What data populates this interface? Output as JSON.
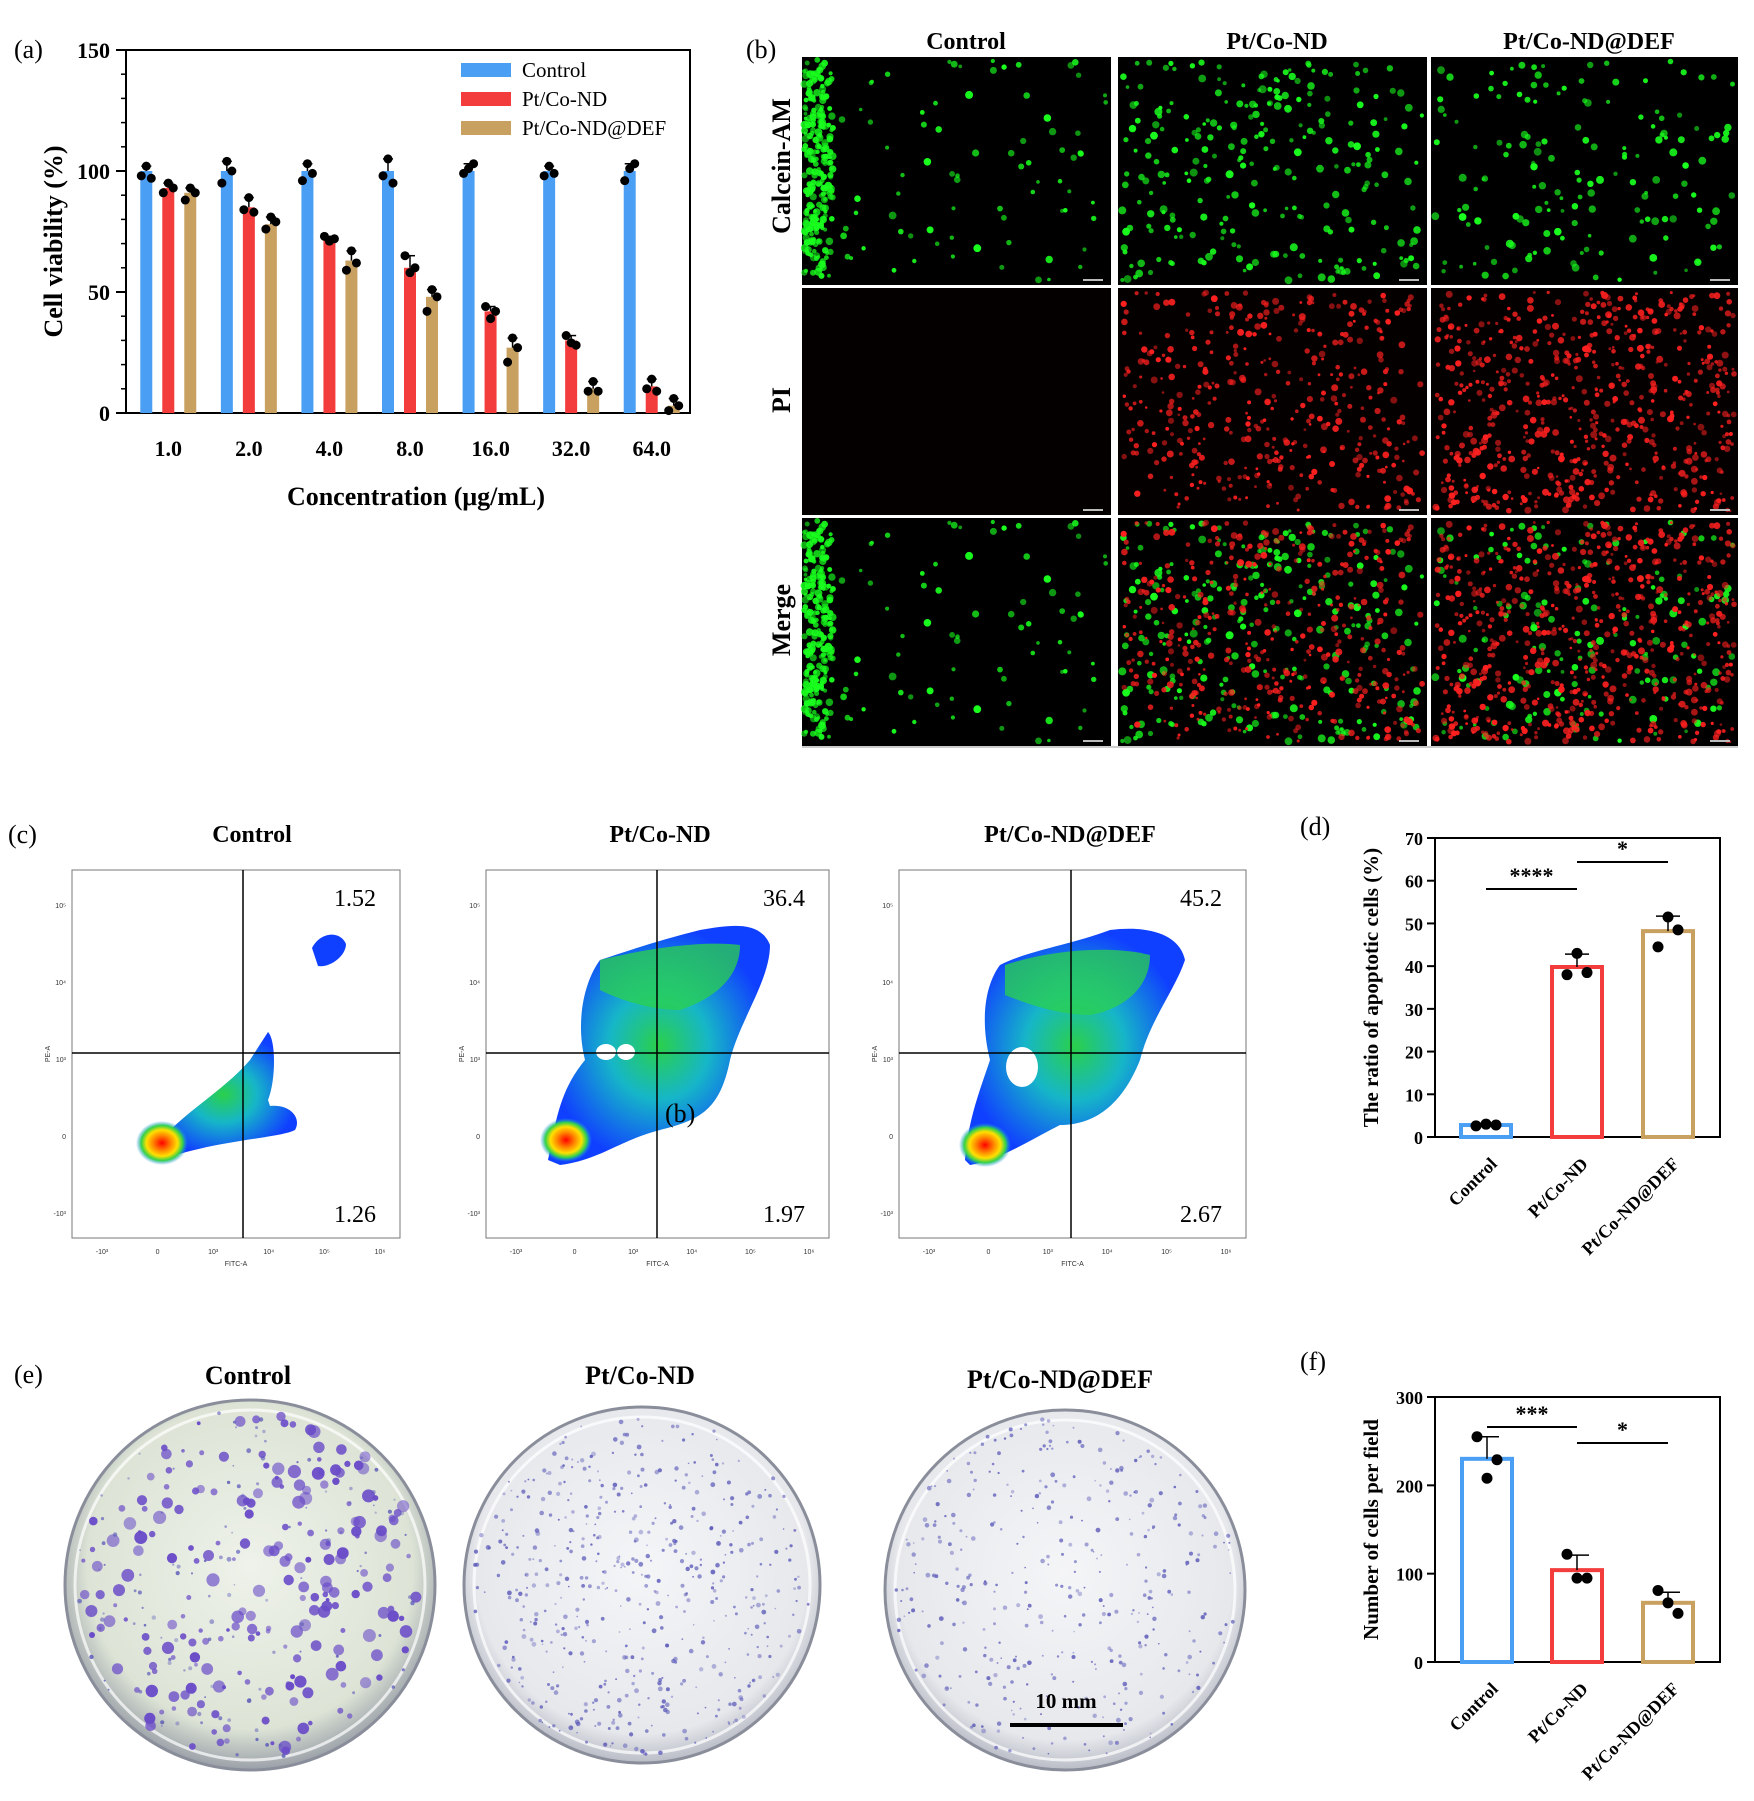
{
  "colors": {
    "control": "#4a9ff5",
    "ptco": "#f33d3d",
    "ptcodef": "#c8a060",
    "live": "#19ff1e",
    "dead": "#ff2020"
  },
  "panel_a": {
    "label": "(a)"
  },
  "panel_b": {
    "label": "(b)",
    "columns": [
      "Control",
      "Pt/Co-ND",
      "Pt/Co-ND@DEF"
    ],
    "rows": [
      "Calcein-AM",
      "PI",
      "Merge"
    ]
  },
  "panel_c": {
    "label": "(c)",
    "titles": [
      "Control",
      "Pt/Co-ND",
      "Pt/Co-ND@DEF"
    ],
    "upper_right": [
      "1.52",
      "36.4",
      "45.2"
    ],
    "lower_right": [
      "1.26",
      "1.97",
      "2.67"
    ],
    "stray_label": "(b)",
    "xaxis_label": "FITC-A",
    "yaxis_label": "PE-A",
    "x_ticks": [
      "-10³",
      "0",
      "10³",
      "10⁴",
      "10⁵",
      "10⁶"
    ],
    "y_ticks": [
      "10⁵",
      "10⁴",
      "10³",
      "0",
      "-10³"
    ]
  },
  "panel_d": {
    "label": "(d)",
    "sig": [
      "****",
      "*"
    ]
  },
  "panel_e": {
    "label": "(e)",
    "titles": [
      "Control",
      "Pt/Co-ND",
      "Pt/Co-ND@DEF"
    ],
    "scale_bar": "10 mm"
  },
  "panel_f": {
    "label": "(f)",
    "sig": [
      "***",
      "*"
    ]
  },
  "chart_data": [
    {
      "id": "a",
      "type": "bar",
      "title": "",
      "xlabel": "Concentration (μg/mL)",
      "ylabel": "Cell viability (%)",
      "ylim": [
        0,
        150
      ],
      "yticks": [
        0,
        50,
        100,
        150
      ],
      "legend": "top-right",
      "categories": [
        "1.0",
        "2.0",
        "4.0",
        "8.0",
        "16.0",
        "32.0",
        "64.0"
      ],
      "series": [
        {
          "name": "Control",
          "values": [
            100,
            100,
            100,
            100,
            100,
            100,
            100
          ],
          "points": [
            [
              98,
              102,
              97
            ],
            [
              95,
              104,
              100
            ],
            [
              96,
              103,
              99
            ],
            [
              98,
              105,
              95
            ],
            [
              99,
              101,
              103
            ],
            [
              98,
              102,
              99
            ],
            [
              96,
              101,
              103
            ]
          ]
        },
        {
          "name": "Pt/Co-ND",
          "values": [
            93,
            85,
            72,
            60,
            42,
            30,
            11
          ],
          "points": [
            [
              91,
              95,
              93
            ],
            [
              84,
              89,
              83
            ],
            [
              73,
              71,
              72
            ],
            [
              65,
              58,
              60
            ],
            [
              44,
              39,
              42
            ],
            [
              32,
              29,
              28
            ],
            [
              10,
              14,
              9
            ]
          ]
        },
        {
          "name": "Pt/Co-ND@DEF",
          "values": [
            91,
            78,
            63,
            48,
            27,
            10,
            3
          ],
          "points": [
            [
              88,
              93,
              91
            ],
            [
              76,
              81,
              79
            ],
            [
              59,
              67,
              62
            ],
            [
              42,
              51,
              48
            ],
            [
              21,
              31,
              27
            ],
            [
              9,
              13,
              9
            ],
            [
              1,
              6,
              3
            ]
          ]
        }
      ]
    },
    {
      "id": "d",
      "type": "bar",
      "title": "",
      "xlabel": "",
      "ylabel": "The ratio of apoptotic cells (%)",
      "ylim": [
        0,
        70
      ],
      "yticks": [
        0,
        10,
        20,
        30,
        40,
        50,
        60,
        70
      ],
      "categories": [
        "Control",
        "Pt/Co-ND",
        "Pt/Co-ND@DEF"
      ],
      "values": [
        2.8,
        39.8,
        48.2
      ],
      "errors": [
        0.4,
        3.0,
        3.5
      ],
      "points": [
        [
          2.6,
          3.0,
          2.8
        ],
        [
          38,
          43,
          38.5
        ],
        [
          44.5,
          51.5,
          48.5
        ]
      ]
    },
    {
      "id": "f",
      "type": "bar",
      "title": "",
      "xlabel": "",
      "ylabel": "Number of cells per field",
      "ylim": [
        0,
        300
      ],
      "yticks": [
        0,
        100,
        200,
        300
      ],
      "categories": [
        "Control",
        "Pt/Co-ND",
        "Pt/Co-ND@DEF"
      ],
      "values": [
        230,
        104,
        67
      ],
      "errors": [
        25,
        17,
        12
      ],
      "points": [
        [
          255,
          208,
          229
        ],
        [
          122,
          95,
          95
        ],
        [
          81,
          67,
          55
        ]
      ]
    }
  ]
}
